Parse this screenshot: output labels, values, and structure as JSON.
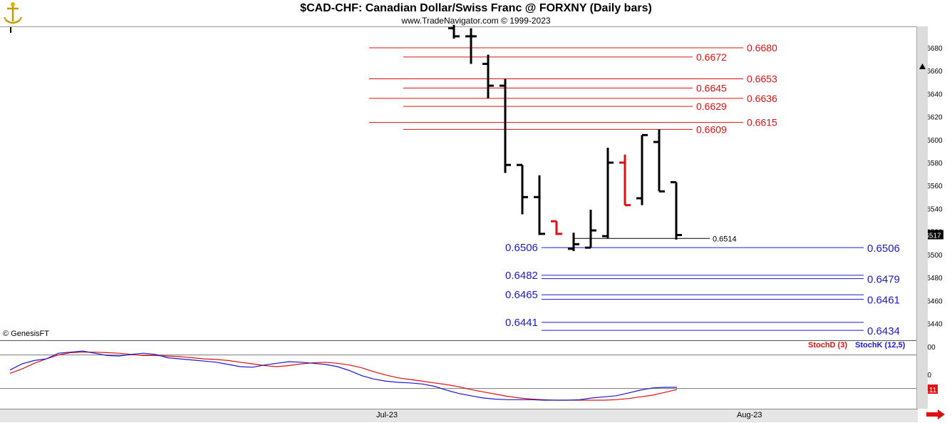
{
  "header": {
    "title": "$CAD-CHF:  Canadian Dollar/Swiss Franc @ FORXNY  (Daily bars)",
    "subtitle": "www.TradeNavigator.com © 1999-2023"
  },
  "copyright": "© GenesisFT",
  "time_axis": {
    "labels": [
      "Jul-23",
      "Aug-23"
    ]
  },
  "colors": {
    "resistance": "#dd1111",
    "support": "#1a1acc",
    "bar_up": "#000000",
    "bar_down": "#dd1111",
    "stoch_d": "#dd1111",
    "stoch_k": "#1a1acc"
  },
  "chart_data": [
    {
      "type": "ohlc",
      "title": "$CAD-CHF:  Canadian Dollar/Swiss Franc @ FORXNY  (Daily bars)",
      "ylim": [
        0.6426,
        0.6698
      ],
      "y_ticks": [
        "0.6680",
        "0.6660",
        "0.6640",
        "0.6620",
        "0.6600",
        "0.6580",
        "0.6560",
        "0.6540",
        "0.6520",
        "0.6500",
        "0.6480",
        "0.6460",
        "0.6440"
      ],
      "last_price": "0.6517",
      "bars": [
        {
          "o": 0.6697,
          "h": 0.67,
          "l": 0.6688,
          "c": 0.669,
          "color": "black"
        },
        {
          "o": 0.669,
          "h": 0.6697,
          "l": 0.6666,
          "c": 0.669,
          "color": "black"
        },
        {
          "o": 0.6666,
          "h": 0.6674,
          "l": 0.6636,
          "c": 0.6647,
          "color": "black"
        },
        {
          "o": 0.6647,
          "h": 0.6653,
          "l": 0.6571,
          "c": 0.6578,
          "color": "black"
        },
        {
          "o": 0.6578,
          "h": 0.6578,
          "l": 0.6535,
          "c": 0.655,
          "color": "black"
        },
        {
          "o": 0.655,
          "h": 0.6569,
          "l": 0.6517,
          "c": 0.6518,
          "color": "black"
        },
        {
          "o": 0.6529,
          "h": 0.6529,
          "l": 0.6517,
          "c": 0.6518,
          "color": "red"
        },
        {
          "o": 0.6505,
          "h": 0.6519,
          "l": 0.6503,
          "c": 0.6509,
          "color": "black"
        },
        {
          "o": 0.6506,
          "h": 0.6539,
          "l": 0.6506,
          "c": 0.6521,
          "color": "black"
        },
        {
          "o": 0.6516,
          "h": 0.6593,
          "l": 0.6514,
          "c": 0.658,
          "color": "black"
        },
        {
          "o": 0.658,
          "h": 0.6587,
          "l": 0.6543,
          "c": 0.6543,
          "color": "red"
        },
        {
          "o": 0.6549,
          "h": 0.6604,
          "l": 0.6543,
          "c": 0.6604,
          "color": "black"
        },
        {
          "o": 0.6598,
          "h": 0.6609,
          "l": 0.6555,
          "c": 0.6555,
          "color": "black"
        },
        {
          "o": 0.6563,
          "h": 0.6563,
          "l": 0.6513,
          "c": 0.6517,
          "color": "black"
        }
      ],
      "resistance_levels": [
        {
          "value": 0.668,
          "label": "0.6680"
        },
        {
          "value": 0.6672,
          "label": "0.6672"
        },
        {
          "value": 0.6653,
          "label": "0.6653"
        },
        {
          "value": 0.6645,
          "label": "0.6645"
        },
        {
          "value": 0.6636,
          "label": "0.6636"
        },
        {
          "value": 0.6629,
          "label": "0.6629"
        },
        {
          "value": 0.6615,
          "label": "0.6615"
        },
        {
          "value": 0.6609,
          "label": "0.6609"
        }
      ],
      "pivot": {
        "value": 0.6514,
        "label": "0.6514"
      },
      "support_levels": [
        {
          "value": 0.6506,
          "left_label": "0.6506",
          "right_label": "0.6506"
        },
        {
          "value": 0.6482,
          "left_label": "0.6482",
          "right_label": ""
        },
        {
          "value": 0.6479,
          "left_label": "",
          "right_label": "0.6479"
        },
        {
          "value": 0.6465,
          "left_label": "0.6465",
          "right_label": ""
        },
        {
          "value": 0.6461,
          "left_label": "",
          "right_label": "0.6461"
        },
        {
          "value": 0.6441,
          "left_label": "0.6441",
          "right_label": ""
        },
        {
          "value": 0.6434,
          "left_label": "",
          "right_label": "0.6434"
        }
      ]
    },
    {
      "type": "line",
      "ylim": [
        -10,
        110
      ],
      "y_ticks": [
        "100",
        "50",
        "0"
      ],
      "reference_lines": [
        85,
        25
      ],
      "last_value": "23.11",
      "series": [
        {
          "name": "StochD (3)",
          "values": [
            52,
            60,
            70,
            78,
            85,
            89,
            90,
            90,
            89,
            88,
            86,
            84,
            84,
            83,
            82,
            80,
            78,
            77,
            75,
            72,
            69,
            66,
            64,
            66,
            69,
            71,
            72,
            70,
            67,
            62,
            55,
            49,
            44,
            41,
            38,
            35,
            32,
            28,
            23,
            19,
            15,
            11,
            8,
            6,
            5,
            4,
            4,
            4,
            4,
            4,
            5,
            7,
            10,
            13,
            18,
            23
          ]
        },
        {
          "name": "StochK (12,5)",
          "values": [
            58,
            69,
            75,
            78,
            88,
            90,
            92,
            88,
            84,
            83,
            86,
            88,
            86,
            80,
            78,
            76,
            74,
            72,
            68,
            64,
            63,
            67,
            70,
            73,
            72,
            70,
            68,
            64,
            57,
            48,
            42,
            38,
            36,
            35,
            33,
            29,
            22,
            16,
            12,
            8,
            6,
            5,
            5,
            5,
            4,
            4,
            4,
            5,
            8,
            10,
            12,
            17,
            22,
            26,
            27,
            27
          ]
        }
      ]
    }
  ]
}
